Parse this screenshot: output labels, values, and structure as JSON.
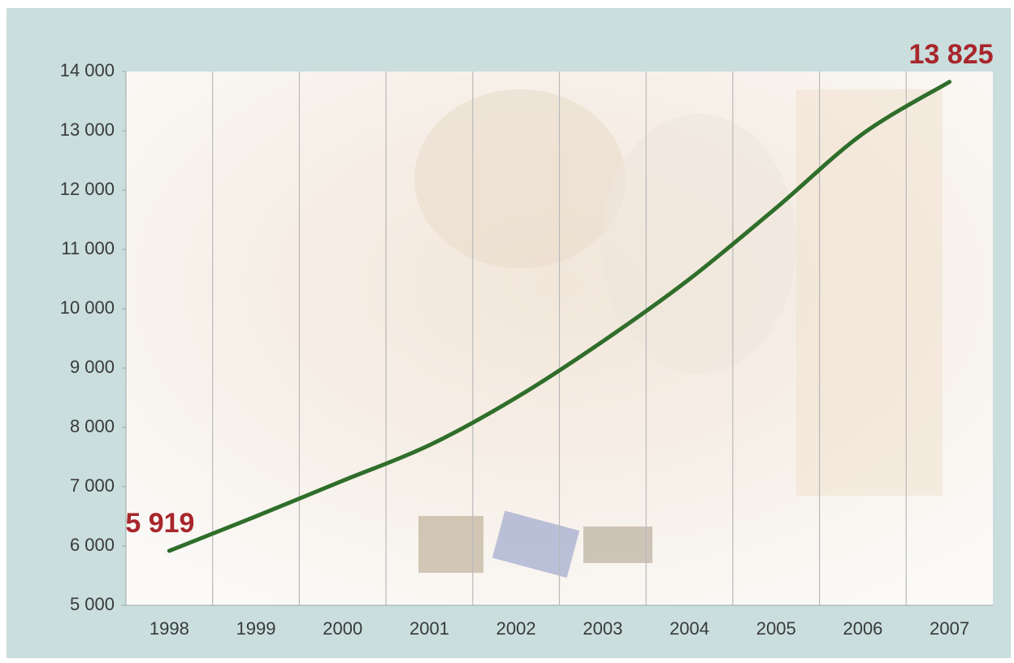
{
  "chart_data": {
    "type": "line",
    "categories": [
      "1998",
      "1999",
      "2000",
      "2001",
      "2002",
      "2003",
      "2004",
      "2005",
      "2006",
      "2007"
    ],
    "values": [
      5919,
      6500,
      7100,
      7700,
      8500,
      9450,
      10500,
      11700,
      12950,
      13825
    ],
    "value_labels": [
      "5 919",
      null,
      null,
      null,
      null,
      null,
      null,
      null,
      null,
      "13 825"
    ],
    "color": "#2f6e2a",
    "ylim": [
      5000,
      14000
    ],
    "yticks": [
      {
        "value": 5000,
        "label": "5 000"
      },
      {
        "value": 6000,
        "label": "6 000"
      },
      {
        "value": 7000,
        "label": "7 000"
      },
      {
        "value": 8000,
        "label": "8 000"
      },
      {
        "value": 9000,
        "label": "9 000"
      },
      {
        "value": 10000,
        "label": "10 000"
      },
      {
        "value": 11000,
        "label": "11 000"
      },
      {
        "value": 12000,
        "label": "12 000"
      },
      {
        "value": 13000,
        "label": "13 000"
      },
      {
        "value": 14000,
        "label": "14 000"
      }
    ],
    "grid": true
  }
}
